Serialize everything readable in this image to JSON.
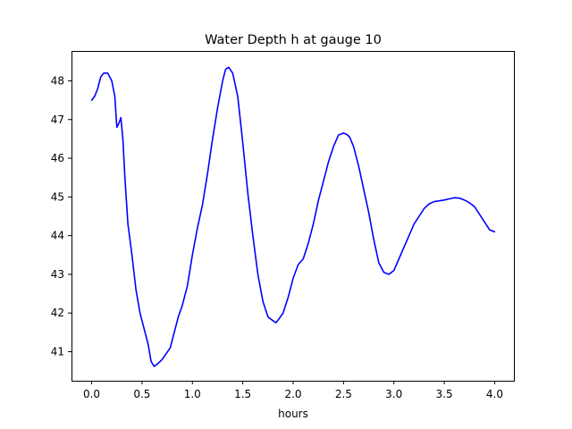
{
  "chart_data": {
    "type": "line",
    "title": "Water Depth h at gauge 10",
    "xlabel": "hours",
    "ylabel": "",
    "xlim": [
      -0.2,
      4.2
    ],
    "ylim": [
      40.25,
      48.75
    ],
    "xticks": [
      0.0,
      0.5,
      1.0,
      1.5,
      2.0,
      2.5,
      3.0,
      3.5,
      4.0
    ],
    "xtick_labels": [
      "0.0",
      "0.5",
      "1.0",
      "1.5",
      "2.0",
      "2.5",
      "3.0",
      "3.5",
      "4.0"
    ],
    "yticks": [
      41,
      42,
      43,
      44,
      45,
      46,
      47,
      48
    ],
    "ytick_labels": [
      "41",
      "42",
      "43",
      "44",
      "45",
      "46",
      "47",
      "48"
    ],
    "grid": false,
    "series": [
      {
        "color": "#0000ff",
        "x": [
          0.0,
          0.03,
          0.06,
          0.09,
          0.12,
          0.16,
          0.2,
          0.23,
          0.25,
          0.27,
          0.29,
          0.31,
          0.33,
          0.36,
          0.4,
          0.44,
          0.48,
          0.52,
          0.56,
          0.59,
          0.62,
          0.66,
          0.7,
          0.74,
          0.78,
          0.82,
          0.86,
          0.9,
          0.95,
          1.0,
          1.05,
          1.1,
          1.15,
          1.2,
          1.25,
          1.3,
          1.33,
          1.36,
          1.4,
          1.45,
          1.5,
          1.55,
          1.6,
          1.65,
          1.7,
          1.75,
          1.8,
          1.83,
          1.86,
          1.9,
          1.95,
          2.0,
          2.05,
          2.1,
          2.15,
          2.2,
          2.25,
          2.3,
          2.35,
          2.4,
          2.45,
          2.5,
          2.53,
          2.56,
          2.6,
          2.65,
          2.7,
          2.75,
          2.8,
          2.85,
          2.9,
          2.95,
          3.0,
          3.05,
          3.1,
          3.15,
          3.2,
          3.25,
          3.3,
          3.35,
          3.4,
          3.45,
          3.5,
          3.55,
          3.6,
          3.65,
          3.7,
          3.75,
          3.8,
          3.85,
          3.9,
          3.95,
          4.0
        ],
        "y": [
          47.5,
          47.6,
          47.8,
          48.1,
          48.2,
          48.2,
          48.0,
          47.6,
          46.8,
          46.9,
          47.05,
          46.5,
          45.5,
          44.3,
          43.5,
          42.6,
          42.0,
          41.6,
          41.2,
          40.75,
          40.62,
          40.7,
          40.8,
          40.95,
          41.1,
          41.5,
          41.9,
          42.2,
          42.7,
          43.5,
          44.2,
          44.8,
          45.6,
          46.5,
          47.3,
          48.0,
          48.3,
          48.35,
          48.2,
          47.6,
          46.4,
          45.1,
          44.0,
          43.0,
          42.3,
          41.9,
          41.8,
          41.75,
          41.85,
          42.0,
          42.4,
          42.9,
          43.25,
          43.4,
          43.8,
          44.3,
          44.9,
          45.4,
          45.9,
          46.3,
          46.6,
          46.65,
          46.62,
          46.55,
          46.3,
          45.8,
          45.2,
          44.6,
          43.9,
          43.3,
          43.05,
          43.0,
          43.1,
          43.4,
          43.7,
          44.0,
          44.3,
          44.5,
          44.7,
          44.82,
          44.88,
          44.9,
          44.92,
          44.95,
          44.98,
          44.97,
          44.92,
          44.85,
          44.75,
          44.55,
          44.35,
          44.15,
          44.1
        ]
      }
    ]
  }
}
